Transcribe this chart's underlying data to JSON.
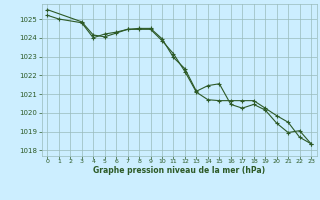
{
  "title": "Graphe pression niveau de la mer (hPa)",
  "bg_color": "#cceeff",
  "grid_color": "#99bbbb",
  "line_color": "#2d5a27",
  "xlim": [
    -0.5,
    23.5
  ],
  "ylim": [
    1017.7,
    1025.8
  ],
  "yticks": [
    1018,
    1019,
    1020,
    1021,
    1022,
    1023,
    1024,
    1025
  ],
  "xticks": [
    0,
    1,
    2,
    3,
    4,
    5,
    6,
    7,
    8,
    9,
    10,
    11,
    12,
    13,
    14,
    15,
    16,
    17,
    18,
    19,
    20,
    21,
    22,
    23
  ],
  "series1_x": [
    0,
    1,
    3,
    4,
    5,
    6,
    7,
    8,
    9,
    10,
    11,
    12,
    13,
    14,
    15,
    16,
    17,
    18,
    19,
    20,
    21,
    22,
    23
  ],
  "series1_y": [
    1025.2,
    1025.0,
    1024.8,
    1024.0,
    1024.2,
    1024.3,
    1024.45,
    1024.45,
    1024.45,
    1023.85,
    1023.15,
    1022.2,
    1021.1,
    1020.7,
    1020.65,
    1020.65,
    1020.65,
    1020.65,
    1020.25,
    1019.85,
    1019.5,
    1018.7,
    1018.35
  ],
  "series2_x": [
    0,
    3,
    4,
    5,
    6,
    7,
    8,
    9,
    10,
    11,
    12,
    13,
    14,
    15,
    16,
    17,
    18,
    19,
    20,
    21,
    22,
    23
  ],
  "series2_y": [
    1025.5,
    1024.85,
    1024.15,
    1024.05,
    1024.25,
    1024.45,
    1024.5,
    1024.5,
    1023.95,
    1022.95,
    1022.35,
    1021.15,
    1021.45,
    1021.55,
    1020.45,
    1020.25,
    1020.45,
    1020.15,
    1019.45,
    1018.95,
    1019.05,
    1018.35
  ]
}
